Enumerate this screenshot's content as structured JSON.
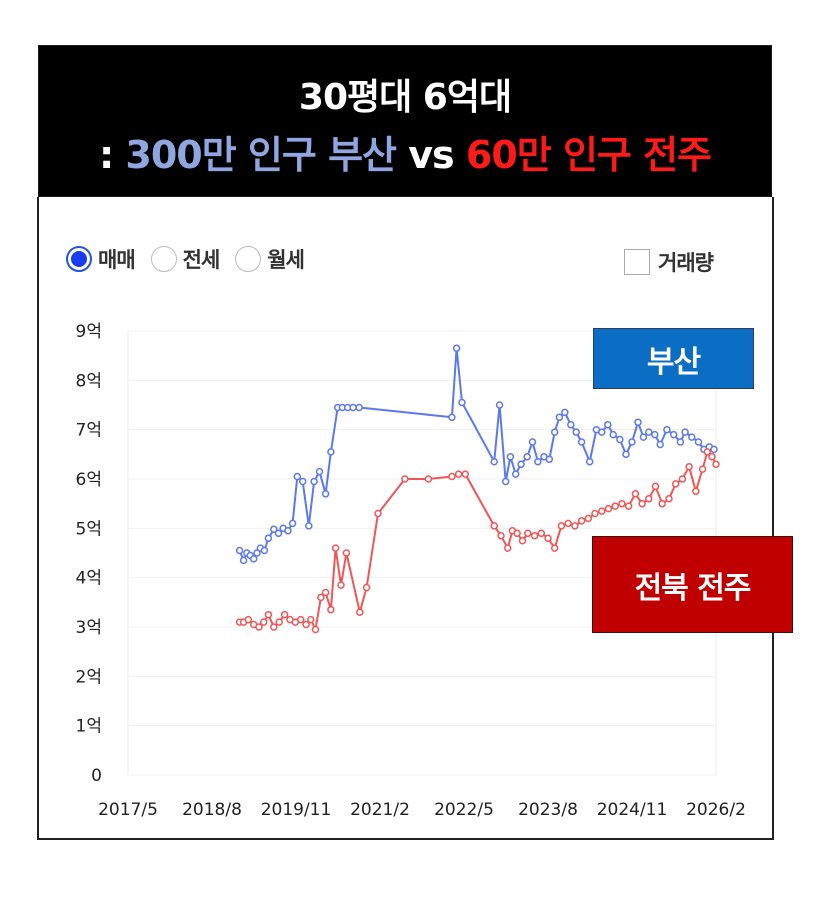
{
  "header": {
    "line1": "30평대 6억대",
    "line2_prefix": ": ",
    "line2_busan": "300만 인구 부산",
    "line2_vs": " vs ",
    "line2_jeonju": "60만 인구 전주"
  },
  "controls": {
    "radios": [
      {
        "label": "매매",
        "selected": true
      },
      {
        "label": "전세",
        "selected": false
      },
      {
        "label": "월세",
        "selected": false
      }
    ],
    "volume_label": "거래량"
  },
  "tags": {
    "busan": "부산",
    "jeonju": "전북 전주"
  },
  "colors": {
    "busan": "#5b78f0",
    "jeonju": "#f25555",
    "busan_tag": "#0b6ec4",
    "jeonju_tag": "#c00000"
  },
  "chart_data": {
    "type": "line",
    "title": "",
    "xlabel": "",
    "ylabel": "",
    "ylim": [
      0,
      9
    ],
    "xlim": [
      2017.33,
      2026.08
    ],
    "yticks": [
      0,
      1,
      2,
      3,
      4,
      5,
      6,
      7,
      8,
      9
    ],
    "ytick_labels": [
      "0",
      "1억",
      "2억",
      "3억",
      "4억",
      "5억",
      "6억",
      "7억",
      "8억",
      "9억"
    ],
    "xticks": [
      2017.33,
      2018.58,
      2019.83,
      2021.08,
      2022.33,
      2023.58,
      2024.83,
      2026.08
    ],
    "xtick_labels": [
      "2017/5",
      "2018/8",
      "2019/11",
      "2021/2",
      "2022/5",
      "2023/8",
      "2024/11",
      "2026/2"
    ],
    "grid": true,
    "series": [
      {
        "name": "부산",
        "x": [
          2018.99,
          2019.05,
          2019.1,
          2019.15,
          2019.2,
          2019.25,
          2019.3,
          2019.36,
          2019.42,
          2019.5,
          2019.57,
          2019.64,
          2019.71,
          2019.78,
          2019.85,
          2019.93,
          2020.02,
          2020.1,
          2020.18,
          2020.27,
          2020.35,
          2020.45,
          2020.52,
          2020.6,
          2020.68,
          2020.77,
          2022.15,
          2022.22,
          2022.3,
          2022.78,
          2022.86,
          2022.95,
          2023.02,
          2023.1,
          2023.18,
          2023.27,
          2023.35,
          2023.43,
          2023.52,
          2023.6,
          2023.68,
          2023.75,
          2023.83,
          2023.92,
          2024.0,
          2024.08,
          2024.2,
          2024.3,
          2024.38,
          2024.47,
          2024.55,
          2024.65,
          2024.74,
          2024.83,
          2024.92,
          2025.0,
          2025.08,
          2025.17,
          2025.25,
          2025.35,
          2025.45,
          2025.55,
          2025.62,
          2025.72,
          2025.82,
          2025.9,
          2025.98,
          2026.05
        ],
        "y": [
          4.55,
          4.35,
          4.5,
          4.45,
          4.38,
          4.5,
          4.6,
          4.55,
          4.8,
          4.98,
          4.9,
          5.0,
          4.95,
          5.1,
          6.05,
          5.95,
          5.05,
          5.95,
          6.15,
          5.7,
          6.55,
          7.45,
          7.45,
          7.45,
          7.45,
          7.45,
          7.25,
          8.65,
          7.55,
          6.35,
          7.5,
          5.95,
          6.45,
          6.1,
          6.3,
          6.45,
          6.75,
          6.35,
          6.45,
          6.4,
          6.95,
          7.25,
          7.35,
          7.1,
          6.95,
          6.75,
          6.35,
          7.0,
          6.95,
          7.1,
          6.9,
          6.8,
          6.5,
          6.75,
          7.15,
          6.85,
          6.95,
          6.9,
          6.7,
          7.0,
          6.9,
          6.75,
          6.95,
          6.85,
          6.75,
          6.6,
          6.65,
          6.6
        ]
      },
      {
        "name": "전북 전주",
        "x": [
          2018.99,
          2019.05,
          2019.12,
          2019.2,
          2019.28,
          2019.35,
          2019.42,
          2019.5,
          2019.58,
          2019.66,
          2019.74,
          2019.82,
          2019.9,
          2019.98,
          2020.05,
          2020.12,
          2020.2,
          2020.27,
          2020.35,
          2020.42,
          2020.5,
          2020.58,
          2020.78,
          2020.88,
          2021.05,
          2021.45,
          2021.8,
          2022.15,
          2022.25,
          2022.35,
          2022.78,
          2022.88,
          2022.98,
          2023.05,
          2023.12,
          2023.2,
          2023.28,
          2023.38,
          2023.48,
          2023.58,
          2023.68,
          2023.78,
          2023.88,
          2023.98,
          2024.08,
          2024.18,
          2024.28,
          2024.38,
          2024.48,
          2024.58,
          2024.68,
          2024.78,
          2024.88,
          2024.98,
          2025.08,
          2025.18,
          2025.28,
          2025.38,
          2025.48,
          2025.58,
          2025.68,
          2025.78,
          2025.88,
          2025.95,
          2026.02,
          2026.08
        ],
        "y": [
          3.1,
          3.1,
          3.15,
          3.05,
          3.0,
          3.1,
          3.25,
          3.0,
          3.1,
          3.25,
          3.15,
          3.1,
          3.15,
          3.05,
          3.15,
          2.95,
          3.6,
          3.7,
          3.35,
          4.6,
          3.85,
          4.5,
          3.3,
          3.8,
          5.3,
          6.0,
          6.0,
          6.05,
          6.1,
          6.1,
          5.05,
          4.85,
          4.6,
          4.95,
          4.9,
          4.75,
          4.9,
          4.85,
          4.9,
          4.8,
          4.6,
          5.05,
          5.1,
          5.05,
          5.15,
          5.2,
          5.3,
          5.35,
          5.4,
          5.45,
          5.5,
          5.45,
          5.7,
          5.5,
          5.6,
          5.85,
          5.5,
          5.6,
          5.9,
          6.0,
          6.25,
          5.75,
          6.2,
          6.55,
          6.45,
          6.3
        ]
      }
    ]
  }
}
